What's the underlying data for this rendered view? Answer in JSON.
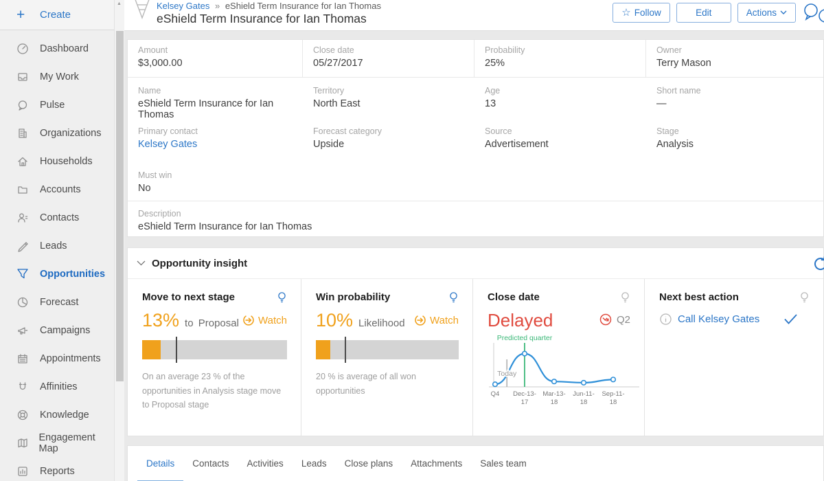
{
  "colors": {
    "accent": "#2b76c7",
    "orange": "#f0a11c",
    "red": "#e04b3f",
    "green": "#3cb878"
  },
  "sidebar": {
    "create_label": "Create",
    "items": [
      {
        "label": "Dashboard"
      },
      {
        "label": "My Work"
      },
      {
        "label": "Pulse"
      },
      {
        "label": "Organizations"
      },
      {
        "label": "Households"
      },
      {
        "label": "Accounts"
      },
      {
        "label": "Contacts"
      },
      {
        "label": "Leads"
      },
      {
        "label": "Opportunities",
        "active": true
      },
      {
        "label": "Forecast"
      },
      {
        "label": "Campaigns"
      },
      {
        "label": "Appointments"
      },
      {
        "label": "Affinities"
      },
      {
        "label": "Knowledge"
      },
      {
        "label": "Engagement Map"
      },
      {
        "label": "Reports"
      }
    ]
  },
  "header": {
    "breadcrumb": {
      "parent": "Kelsey Gates",
      "separator": "»",
      "current": "eShield Term Insurance for Ian Thomas"
    },
    "title": "eShield Term Insurance for Ian Thomas",
    "buttons": {
      "follow": "Follow",
      "edit": "Edit",
      "actions": "Actions"
    }
  },
  "record": {
    "fields_row1": [
      {
        "label": "Amount",
        "value": "$3,000.00"
      },
      {
        "label": "Close date",
        "value": "05/27/2017"
      },
      {
        "label": "Probability",
        "value": "25%"
      },
      {
        "label": "Owner",
        "value": "Terry Mason"
      }
    ],
    "fields_row2": [
      {
        "label": "Name",
        "value": "eShield Term Insurance for Ian Thomas"
      },
      {
        "label": "Territory",
        "value": "North East"
      },
      {
        "label": "Age",
        "value": "13"
      },
      {
        "label": "Short name",
        "value": "—"
      }
    ],
    "fields_row3": [
      {
        "label": "Primary contact",
        "value": "Kelsey Gates",
        "link": true
      },
      {
        "label": "Forecast category",
        "value": "Upside"
      },
      {
        "label": "Source",
        "value": "Advertisement"
      },
      {
        "label": "Stage",
        "value": "Analysis"
      }
    ],
    "must_win": {
      "label": "Must win",
      "value": "No"
    },
    "description": {
      "label": "Description",
      "value": "eShield Term Insurance for Ian Thomas"
    }
  },
  "insight": {
    "section_title": "Opportunity insight",
    "cards": {
      "move_to_next_stage": {
        "title": "Move to next stage",
        "percent": "13%",
        "suffix": "to Proposal",
        "watch_label": "Watch",
        "fill_pct": 13,
        "marker_pct": 23,
        "note": "On an average 23 % of the opportunities in Analysis stage move to Proposal stage"
      },
      "win_probability": {
        "title": "Win probability",
        "percent": "10%",
        "suffix": "Likelihood",
        "watch_label": "Watch",
        "fill_pct": 10,
        "marker_pct": 20,
        "note": "20 % is average of all won opportunities"
      },
      "close_date": {
        "title": "Close date",
        "status": "Delayed",
        "quarter": "Q2"
      },
      "next_best_action": {
        "title": "Next best action",
        "action": "Call Kelsey Gates"
      }
    }
  },
  "chart_data": {
    "type": "line",
    "x_labels": [
      "Q4",
      "Dec-13-17",
      "Mar-13-18",
      "Jun-11-18",
      "Sep-11-18"
    ],
    "values": [
      3,
      80,
      10,
      7,
      15
    ],
    "today_label": "Today",
    "today_position": 0.4,
    "predicted_label": "Predicted quarter",
    "predicted_index": 1,
    "line_color": "#2e8fd8",
    "legend": "vertical green line = predicted close quarter; gray line = today; no y-axis labels"
  },
  "tabs": [
    "Details",
    "Contacts",
    "Activities",
    "Leads",
    "Close plans",
    "Attachments",
    "Sales team"
  ]
}
